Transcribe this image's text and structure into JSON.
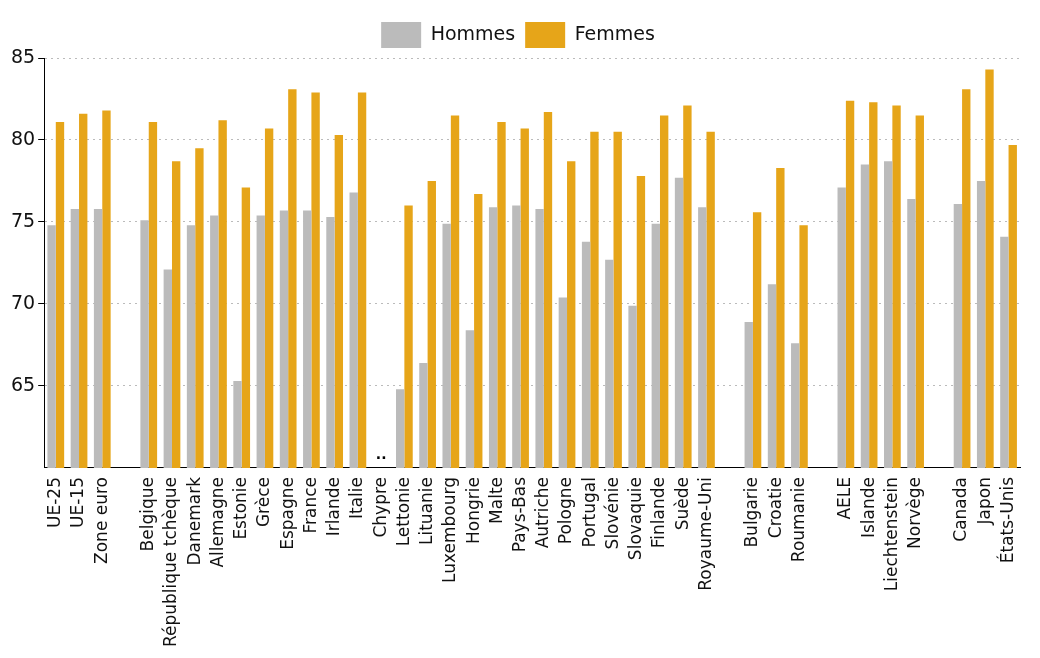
{
  "chart_data": {
    "type": "bar",
    "categories": [
      "UE-25",
      "UE-15",
      "Zone euro",
      null,
      "Belgique",
      "République tchèque",
      "Danemark",
      "Allemagne",
      "Estonie",
      "Grèce",
      "Espagne",
      "France",
      "Irlande",
      "Italie",
      "Chypre",
      "Lettonie",
      "Lituanie",
      "Luxembourg",
      "Hongrie",
      "Malte",
      "Pays-Bas",
      "Autriche",
      "Pologne",
      "Portugal",
      "Slovénie",
      "Slovaquie",
      "Finlande",
      "Suède",
      "Royaume-Uni",
      null,
      "Bulgarie",
      "Croatie",
      "Roumanie",
      null,
      "AELE",
      "Islande",
      "Liechtenstein",
      "Norvège",
      null,
      "Canada",
      "Japon",
      "États-Unis"
    ],
    "series": [
      {
        "name": "Hommes",
        "color": "#bbbbbb",
        "values": [
          74.8,
          75.8,
          75.8,
          null,
          75.1,
          72.1,
          74.8,
          75.4,
          65.3,
          75.4,
          75.7,
          75.7,
          75.3,
          76.8,
          null,
          64.8,
          66.4,
          74.9,
          68.4,
          75.9,
          76.0,
          75.8,
          70.4,
          73.8,
          72.7,
          69.9,
          74.9,
          77.7,
          75.9,
          null,
          68.9,
          71.2,
          67.6,
          null,
          77.1,
          78.5,
          78.7,
          76.4,
          null,
          76.1,
          77.5,
          74.1
        ]
      },
      {
        "name": "Femmes",
        "color": "#e6a519",
        "values": [
          81.1,
          81.6,
          81.8,
          null,
          81.1,
          78.7,
          79.5,
          81.2,
          77.1,
          80.7,
          83.1,
          82.9,
          80.3,
          82.9,
          null,
          76.0,
          77.5,
          81.5,
          76.7,
          81.1,
          80.7,
          81.7,
          78.7,
          80.5,
          80.5,
          77.8,
          81.5,
          82.1,
          80.5,
          null,
          75.6,
          78.3,
          74.8,
          null,
          82.4,
          82.3,
          82.1,
          81.5,
          null,
          83.1,
          84.3,
          79.7
        ]
      }
    ],
    "annotations": [
      ".."
    ],
    "ylim": [
      60,
      85
    ],
    "yticks": [
      65,
      70,
      75,
      80,
      85
    ],
    "grid": "y",
    "legend": "top"
  }
}
